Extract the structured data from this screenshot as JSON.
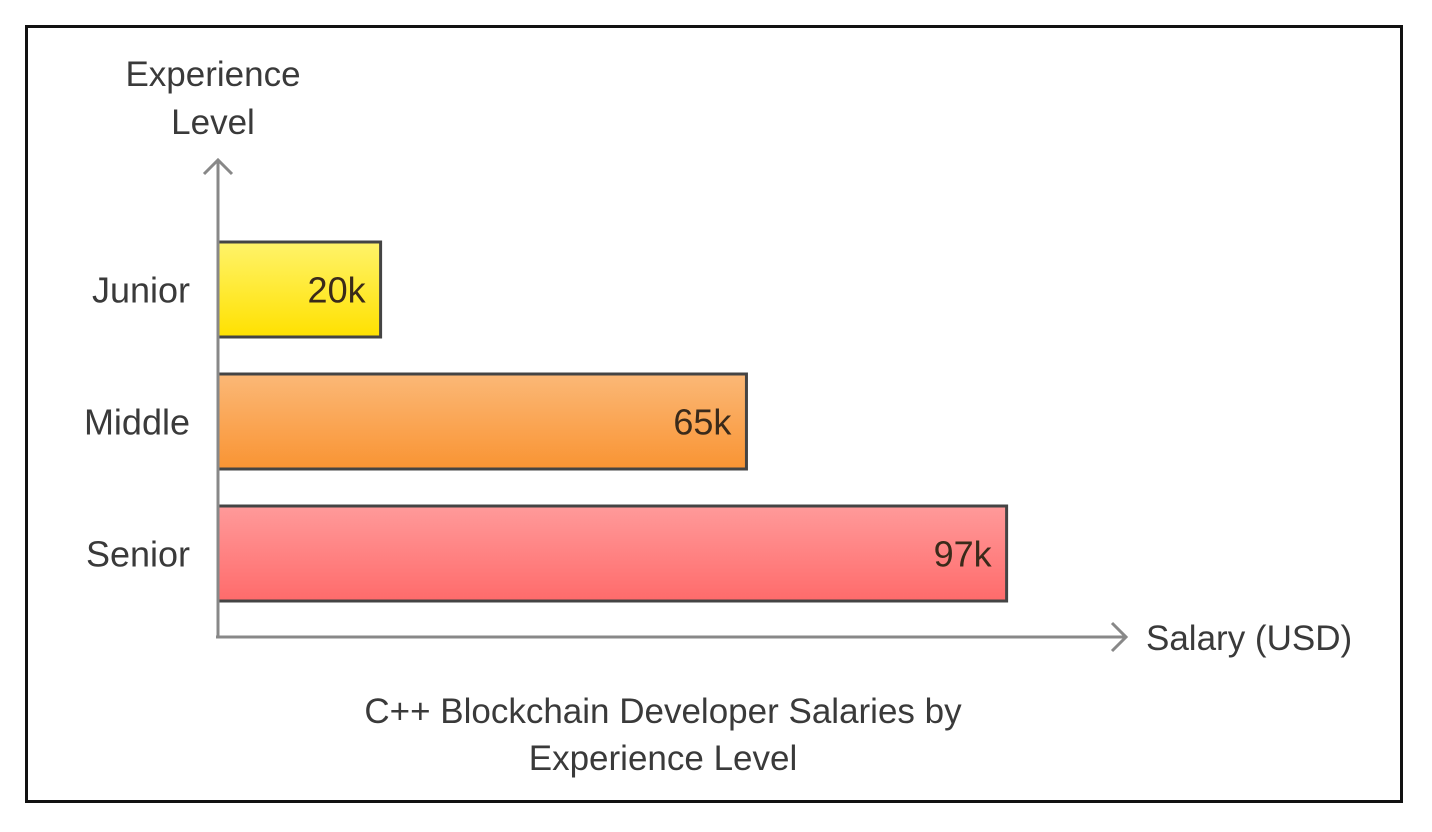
{
  "chart_data": {
    "type": "bar",
    "orientation": "horizontal",
    "title": "C++ Blockchain Developer Salaries by Experience Level",
    "title_lines": [
      "C++ Blockchain Developer Salaries by",
      "Experience Level"
    ],
    "xlabel": "Salary (USD)",
    "ylabel": "Experience Level",
    "ylabel_lines": [
      "Experience",
      "Level"
    ],
    "categories": [
      "Junior",
      "Middle",
      "Senior"
    ],
    "values": [
      20,
      65,
      97
    ],
    "value_labels": [
      "20k",
      "65k",
      "97k"
    ],
    "unit": "k USD",
    "xlim": [
      0,
      111
    ],
    "grid": false,
    "colors": [
      {
        "top": "#fff36a",
        "bottom": "#ffe100"
      },
      {
        "top": "#fbb877",
        "bottom": "#f99433"
      },
      {
        "top": "#ff9a9a",
        "bottom": "#ff6b6b"
      }
    ],
    "border_color": "#444444",
    "axis_color": "#888888"
  }
}
